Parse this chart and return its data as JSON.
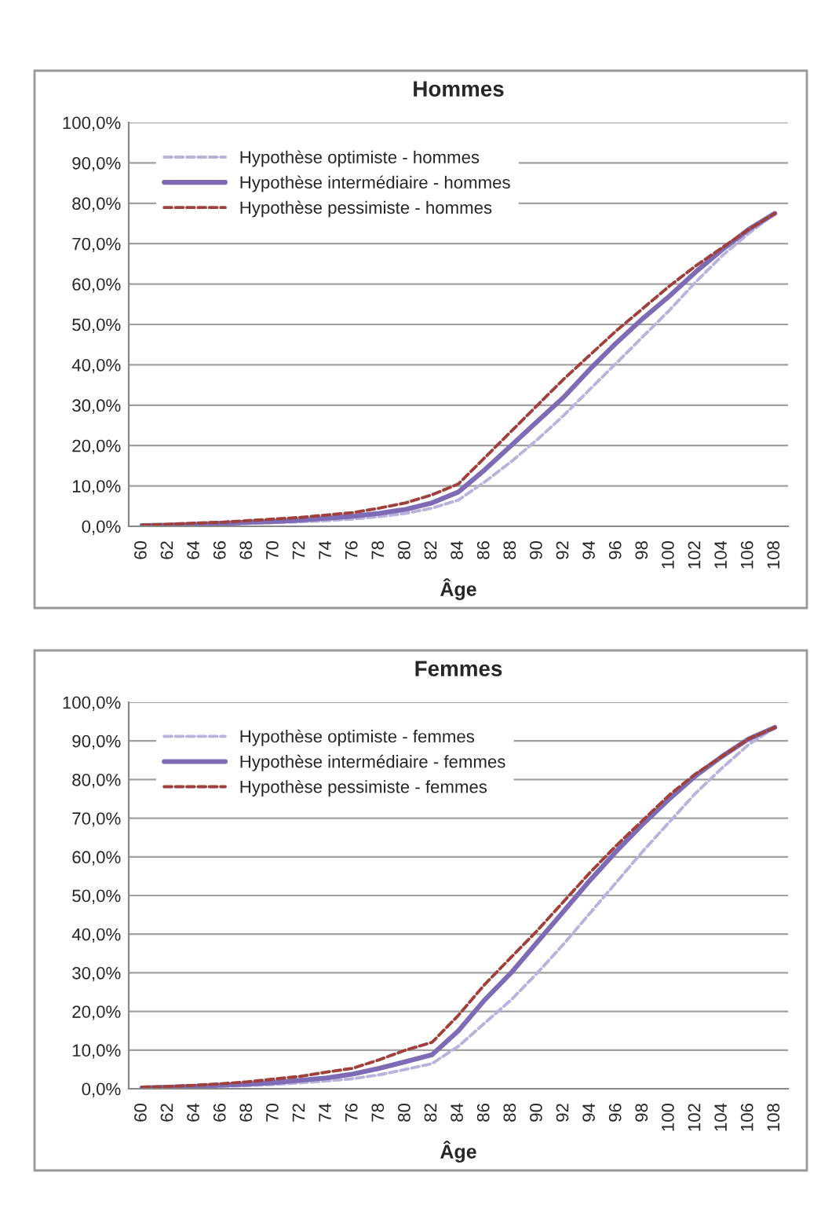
{
  "chart_data": [
    {
      "type": "line",
      "title": "Hommes",
      "xlabel": "Âge",
      "categories": [
        "60",
        "62",
        "64",
        "66",
        "68",
        "70",
        "72",
        "74",
        "76",
        "78",
        "80",
        "82",
        "84",
        "86",
        "88",
        "90",
        "92",
        "94",
        "96",
        "98",
        "100",
        "102",
        "104",
        "106",
        "108"
      ],
      "series": [
        {
          "name": "Hypothèse optimiste - hommes",
          "color": "#b9b3dc",
          "line_style": "dashed",
          "values": [
            0.1,
            0.2,
            0.3,
            0.5,
            0.7,
            0.9,
            1.1,
            1.4,
            1.8,
            2.4,
            3.2,
            4.5,
            6.5,
            11,
            16,
            21.5,
            27.5,
            34,
            40.5,
            47,
            53.5,
            60.5,
            67,
            72.5,
            77.5
          ]
        },
        {
          "name": "Hypothèse intermédiaire - hommes",
          "color": "#7e6bb5",
          "line_style": "solid",
          "values": [
            0.2,
            0.3,
            0.5,
            0.7,
            1.0,
            1.2,
            1.5,
            2.0,
            2.5,
            3.2,
            4.2,
            5.8,
            8.5,
            14,
            20,
            26,
            32,
            39,
            45.5,
            51.5,
            57,
            63,
            68.5,
            73.5,
            77.5
          ]
        },
        {
          "name": "Hypothèse pessimiste - hommes",
          "color": "#a0403c",
          "line_style": "dashed",
          "values": [
            0.3,
            0.5,
            0.8,
            1.0,
            1.4,
            1.8,
            2.2,
            2.8,
            3.4,
            4.5,
            5.8,
            7.8,
            10.5,
            17,
            23.5,
            30,
            36.5,
            42.5,
            48.5,
            54,
            59.5,
            64.5,
            69,
            73.5,
            77.5
          ]
        }
      ],
      "ylim": [
        0,
        100
      ],
      "yticks": [
        {
          "value": 0,
          "label": "0,0%"
        },
        {
          "value": 10,
          "label": "10,0%"
        },
        {
          "value": 20,
          "label": "20,0%"
        },
        {
          "value": 30,
          "label": "30,0%"
        },
        {
          "value": 40,
          "label": "40,0%"
        },
        {
          "value": 50,
          "label": "50,0%"
        },
        {
          "value": 60,
          "label": "60,0%"
        },
        {
          "value": 70,
          "label": "70,0%"
        },
        {
          "value": 80,
          "label": "80,0%"
        },
        {
          "value": 90,
          "label": "90,0%"
        },
        {
          "value": 100,
          "label": "100,0%"
        }
      ],
      "grid": "y",
      "legend": "top left"
    },
    {
      "type": "line",
      "title": "Femmes",
      "xlabel": "Âge",
      "categories": [
        "60",
        "62",
        "64",
        "66",
        "68",
        "70",
        "72",
        "74",
        "76",
        "78",
        "80",
        "82",
        "84",
        "86",
        "88",
        "90",
        "92",
        "94",
        "96",
        "98",
        "100",
        "102",
        "104",
        "106",
        "108"
      ],
      "series": [
        {
          "name": "Hypothèse optimiste - femmes",
          "color": "#b9b3dc",
          "line_style": "dashed",
          "values": [
            0.1,
            0.2,
            0.4,
            0.6,
            0.8,
            1.1,
            1.5,
            2,
            2.6,
            3.6,
            5,
            6.5,
            11,
            17,
            23,
            30,
            37.5,
            45.5,
            53.5,
            61.5,
            69,
            76.5,
            83,
            89,
            93.5
          ]
        },
        {
          "name": "Hypothèse intermédiaire - femmes",
          "color": "#7e6bb5",
          "line_style": "solid",
          "values": [
            0.2,
            0.4,
            0.6,
            0.9,
            1.2,
            1.6,
            2.2,
            2.8,
            3.8,
            5.3,
            7,
            8.8,
            15,
            23,
            30,
            38,
            46,
            54,
            61.5,
            68.5,
            75,
            81,
            86,
            90.5,
            93.5
          ]
        },
        {
          "name": "Hypothèse pessimiste - femmes",
          "color": "#a0403c",
          "line_style": "dashed",
          "values": [
            0.4,
            0.6,
            0.9,
            1.3,
            1.8,
            2.5,
            3.2,
            4.3,
            5.3,
            7.5,
            10,
            12,
            19,
            27,
            34,
            41,
            48.5,
            56,
            63,
            69.5,
            76,
            81.5,
            86,
            90.5,
            93.5
          ]
        }
      ],
      "ylim": [
        0,
        100
      ],
      "yticks": [
        {
          "value": 0,
          "label": "0,0%"
        },
        {
          "value": 10,
          "label": "10,0%"
        },
        {
          "value": 20,
          "label": "20,0%"
        },
        {
          "value": 30,
          "label": "30,0%"
        },
        {
          "value": 40,
          "label": "40,0%"
        },
        {
          "value": 50,
          "label": "50,0%"
        },
        {
          "value": 60,
          "label": "60,0%"
        },
        {
          "value": 70,
          "label": "70,0%"
        },
        {
          "value": 80,
          "label": "80,0%"
        },
        {
          "value": 90,
          "label": "90,0%"
        },
        {
          "value": 100,
          "label": "100,0%"
        }
      ],
      "grid": "y",
      "legend": "top left"
    }
  ]
}
